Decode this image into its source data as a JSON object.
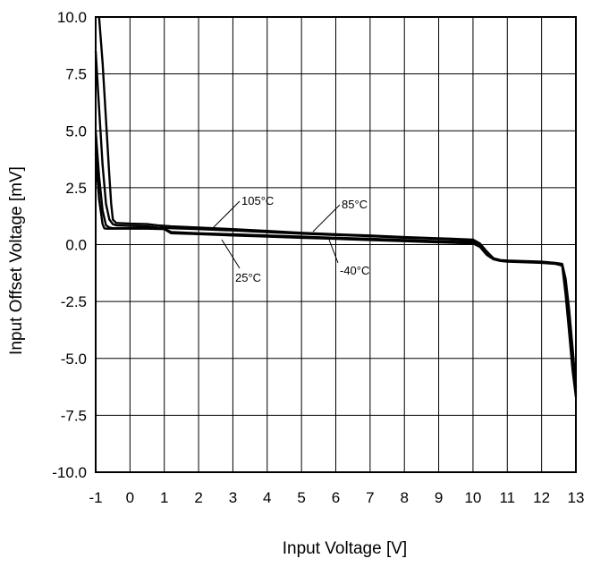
{
  "chart_data": {
    "type": "line",
    "xlabel": "Input Voltage [V]",
    "ylabel": "Input Offset Voltage [mV]",
    "xlim": [
      -1,
      13
    ],
    "ylim": [
      -10.0,
      10.0
    ],
    "x_ticks": [
      "-1",
      "0",
      "1",
      "2",
      "3",
      "4",
      "5",
      "6",
      "7",
      "8",
      "9",
      "10",
      "11",
      "12",
      "13"
    ],
    "y_ticks": [
      "10.0",
      "7.5",
      "5.0",
      "2.5",
      "0.0",
      "-2.5",
      "-5.0",
      "-7.5",
      "-10.0"
    ],
    "grid": true,
    "line_color": "#000000",
    "series": [
      {
        "name": "105°C",
        "x": [
          -0.9,
          -0.8,
          -0.7,
          -0.6,
          -0.55,
          -0.5,
          -0.4,
          0,
          0.5,
          0.8,
          1.2,
          2,
          3,
          4,
          5,
          6,
          7,
          8,
          9,
          10,
          10.2,
          10.4,
          10.6,
          10.8,
          11,
          12,
          12.4,
          12.6,
          12.7,
          12.8,
          12.9,
          13
        ],
        "y": [
          10.0,
          8.0,
          5.5,
          3.0,
          1.8,
          1.1,
          0.95,
          0.92,
          0.9,
          0.85,
          0.8,
          0.75,
          0.68,
          0.6,
          0.52,
          0.45,
          0.4,
          0.33,
          0.28,
          0.22,
          0.05,
          -0.3,
          -0.6,
          -0.68,
          -0.7,
          -0.75,
          -0.8,
          -0.85,
          -1.5,
          -2.8,
          -4.5,
          -6.3
        ]
      },
      {
        "name": "85°C",
        "x": [
          -1.0,
          -0.9,
          -0.8,
          -0.7,
          -0.6,
          -0.5,
          -0.4,
          0,
          0.5,
          0.8,
          1.2,
          2,
          3,
          4,
          5,
          6,
          7,
          8,
          9,
          10,
          10.2,
          10.4,
          10.6,
          10.8,
          11,
          12,
          12.4,
          12.6,
          12.7,
          12.8,
          12.9,
          13
        ],
        "y": [
          8.5,
          6.0,
          3.5,
          1.8,
          1.1,
          0.9,
          0.85,
          0.82,
          0.8,
          0.75,
          0.72,
          0.68,
          0.62,
          0.55,
          0.48,
          0.42,
          0.37,
          0.3,
          0.25,
          0.18,
          0.0,
          -0.35,
          -0.62,
          -0.7,
          -0.72,
          -0.77,
          -0.82,
          -0.88,
          -1.8,
          -3.2,
          -5.0,
          -6.5
        ]
      },
      {
        "name": "25°C",
        "x": [
          -1.0,
          -0.9,
          -0.8,
          -0.7,
          -0.6,
          -0.5,
          -0.4,
          0,
          0.5,
          1.0,
          1.2,
          2,
          3,
          4,
          5,
          6,
          7,
          8,
          9,
          10,
          10.2,
          10.4,
          10.6,
          10.8,
          11,
          12,
          12.4,
          12.6,
          12.7,
          12.8,
          12.9,
          13
        ],
        "y": [
          5.0,
          3.0,
          1.5,
          0.85,
          0.75,
          0.72,
          0.72,
          0.72,
          0.72,
          0.7,
          0.55,
          0.5,
          0.45,
          0.4,
          0.35,
          0.3,
          0.26,
          0.2,
          0.15,
          0.1,
          -0.05,
          -0.4,
          -0.63,
          -0.7,
          -0.73,
          -0.78,
          -0.83,
          -0.9,
          -2.0,
          -3.5,
          -5.2,
          -6.6
        ]
      },
      {
        "name": "-40°C",
        "x": [
          -1.0,
          -0.9,
          -0.8,
          -0.75,
          -0.7,
          -0.6,
          -0.5,
          0,
          0.5,
          1.0,
          1.2,
          2,
          3,
          4,
          5,
          6,
          7,
          8,
          9,
          10,
          10.2,
          10.4,
          10.6,
          10.8,
          11,
          12,
          12.4,
          12.6,
          12.7,
          12.8,
          12.9,
          13
        ],
        "y": [
          4.0,
          2.0,
          0.9,
          0.72,
          0.7,
          0.7,
          0.7,
          0.7,
          0.7,
          0.68,
          0.5,
          0.46,
          0.4,
          0.35,
          0.3,
          0.25,
          0.2,
          0.15,
          0.1,
          0.05,
          -0.1,
          -0.45,
          -0.65,
          -0.72,
          -0.75,
          -0.8,
          -0.85,
          -0.92,
          -2.2,
          -3.8,
          -5.5,
          -6.7
        ]
      }
    ],
    "annotations": [
      {
        "text": "105°C",
        "series": "105°C"
      },
      {
        "text": "85°C",
        "series": "85°C"
      },
      {
        "text": "25°C",
        "series": "25°C"
      },
      {
        "text": "-40°C",
        "series": "-40°C"
      }
    ]
  }
}
